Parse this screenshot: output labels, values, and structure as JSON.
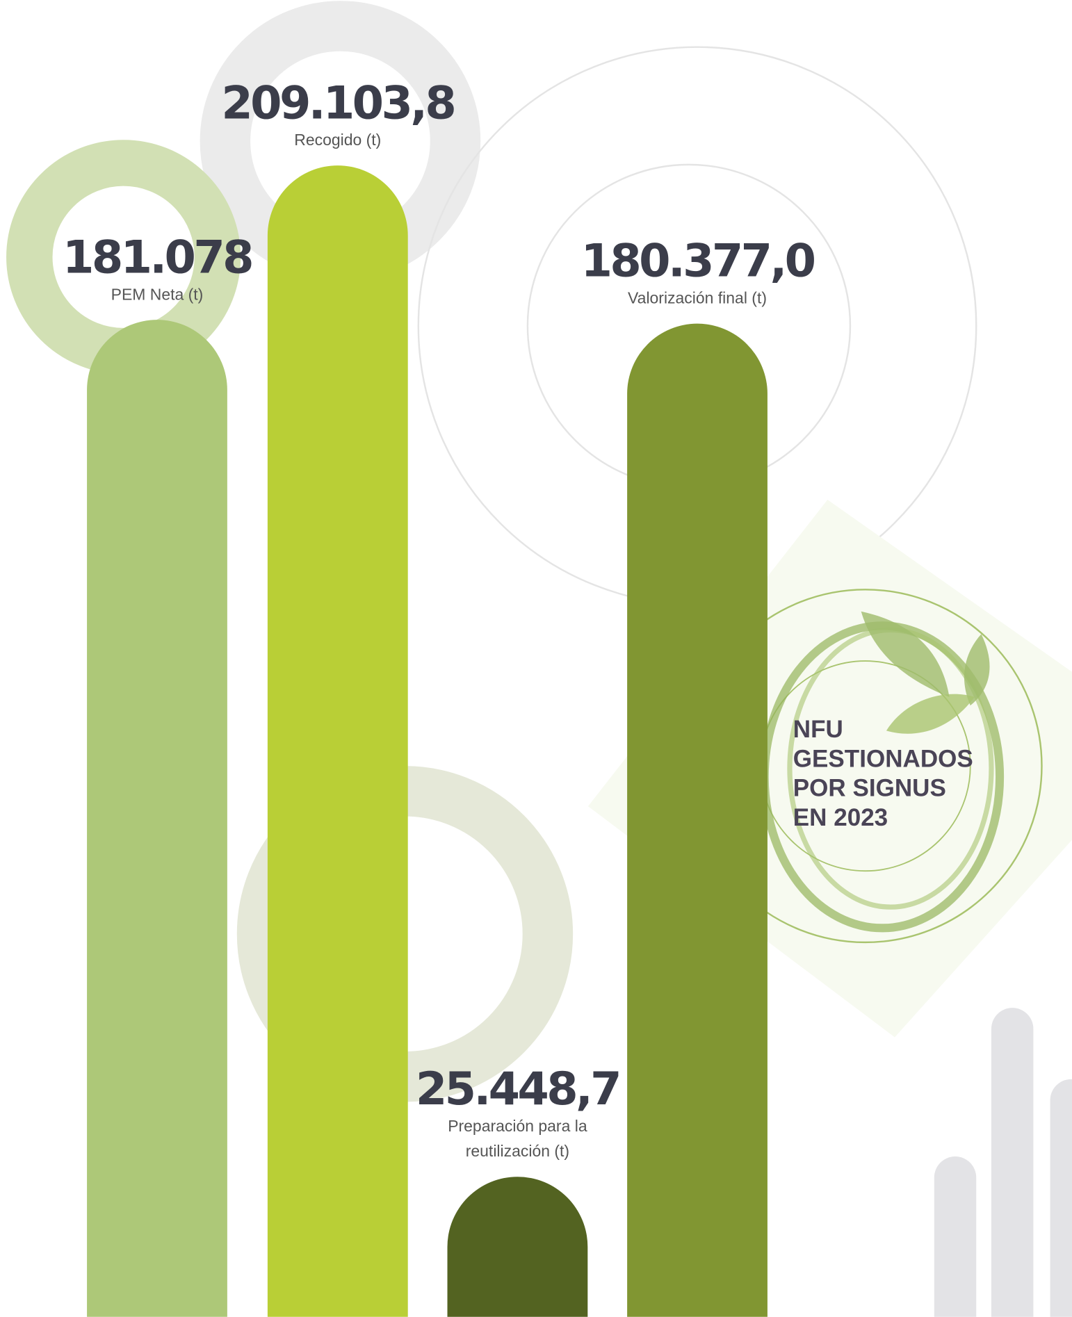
{
  "chart_data": {
    "type": "bar",
    "title": "NFU GESTIONADOS POR SIGNUS EN 2023",
    "categories": [
      "PEM Neta (t)",
      "Recogido (t)",
      "Preparación para la reutilización (t)",
      "Valorización final (t)"
    ],
    "values": [
      181078,
      209103.8,
      25448.7,
      180377.0
    ],
    "value_labels": [
      "181.078",
      "209.103,8",
      "25.448,7",
      "180.377,0"
    ],
    "colors": [
      "#adc878",
      "#b9cf36",
      "#536321",
      "#819632"
    ]
  }
}
